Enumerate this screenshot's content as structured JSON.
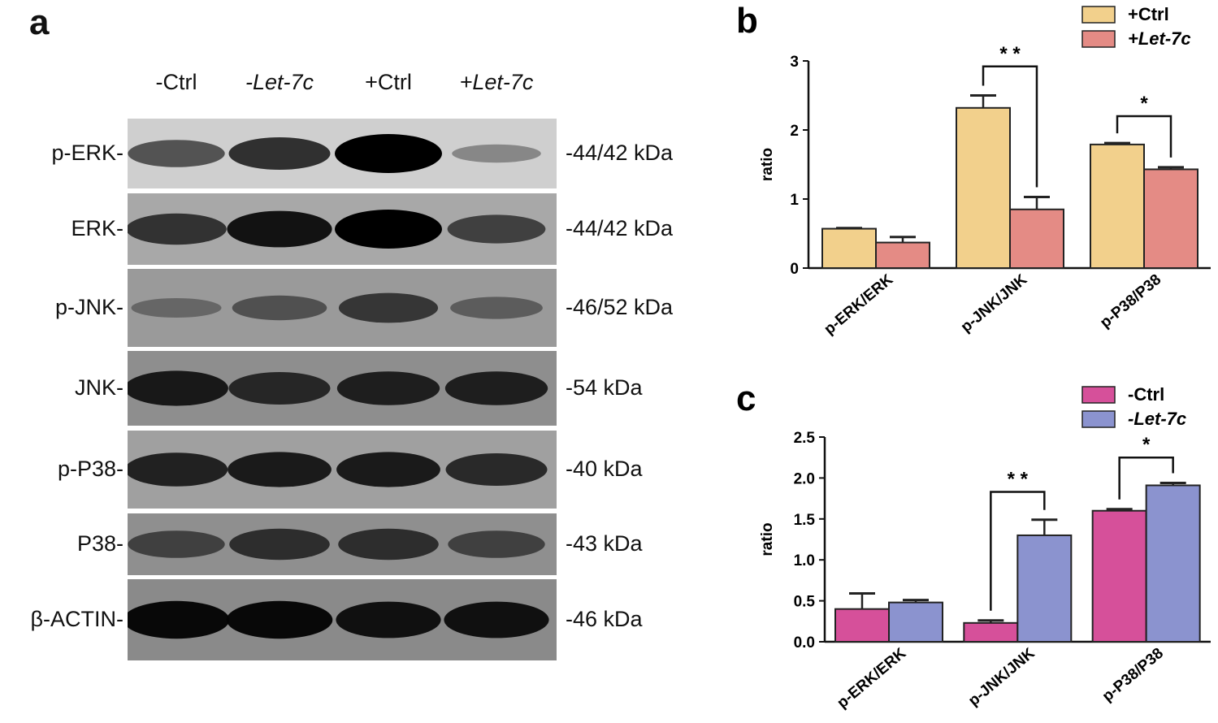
{
  "panel_a": {
    "letter": "a",
    "lanes": [
      {
        "text": "-Ctrl",
        "italic": false
      },
      {
        "text": "-Let-7c",
        "italic": true
      },
      {
        "text": "+Ctrl",
        "italic": false
      },
      {
        "text": "+Let-7c",
        "italic": true
      }
    ],
    "rows": [
      {
        "protein": "p-ERK-",
        "size": "-44/42 kDa",
        "band_intensity": [
          0.55,
          0.75,
          1.0,
          0.2
        ],
        "background": "#cfcfcf"
      },
      {
        "protein": "ERK-",
        "size": "-44/42 kDa",
        "band_intensity": [
          0.7,
          0.9,
          1.0,
          0.6
        ],
        "background": "#a8a8a8"
      },
      {
        "protein": "p-JNK-",
        "size": "-46/52 kDa",
        "band_intensity": [
          0.25,
          0.45,
          0.65,
          0.35
        ],
        "background": "#9a9a9a"
      },
      {
        "protein": "JNK-",
        "size": "-54 kDa",
        "band_intensity": [
          0.85,
          0.75,
          0.8,
          0.8
        ],
        "background": "#8e8e8e"
      },
      {
        "protein": "p-P38-",
        "size": "-40 kDa",
        "band_intensity": [
          0.8,
          0.85,
          0.85,
          0.75
        ],
        "background": "#a0a0a0"
      },
      {
        "protein": "P38-",
        "size": "-43 kDa",
        "band_intensity": [
          0.55,
          0.7,
          0.7,
          0.55
        ],
        "background": "#8f8f8f"
      },
      {
        "protein": "β-ACTIN-",
        "size": "-46 kDa",
        "band_intensity": [
          0.95,
          0.95,
          0.9,
          0.9
        ],
        "background": "#8a8a8a"
      }
    ]
  },
  "chart_data": [
    {
      "panel": "b",
      "type": "bar",
      "ylabel": "ratio",
      "ylim": [
        0,
        3
      ],
      "yticks": [
        "0",
        "1",
        "2",
        "3"
      ],
      "categories": [
        "p-ERK/ERK",
        "p-JNK/JNK",
        "p-P38/P38"
      ],
      "series": [
        {
          "name": "+Ctrl",
          "italic": false,
          "color": "#f2d08c",
          "values": [
            0.57,
            2.32,
            1.79
          ],
          "errors": [
            0.01,
            0.18,
            0.02
          ]
        },
        {
          "name": "+Let-7c",
          "italic": true,
          "color": "#e48b85",
          "values": [
            0.37,
            0.85,
            1.43
          ],
          "errors": [
            0.08,
            0.18,
            0.03
          ]
        }
      ],
      "significance": [
        {
          "category_index": 1,
          "label": "* *",
          "bracket_top": 2.92
        },
        {
          "category_index": 2,
          "label": "*",
          "bracket_top": 2.2
        }
      ],
      "legend": "top-right",
      "grid": false
    },
    {
      "panel": "c",
      "type": "bar",
      "ylabel": "ratio",
      "ylim": [
        0,
        2.5
      ],
      "yticks": [
        "0.0",
        "0.5",
        "1.0",
        "1.5",
        "2.0",
        "2.5"
      ],
      "categories": [
        "p-ERK/ERK",
        "p-JNK/JNK",
        "p-P38/P38"
      ],
      "series": [
        {
          "name": "-Ctrl",
          "italic": false,
          "color": "#d6509a",
          "values": [
            0.4,
            0.23,
            1.6
          ],
          "errors": [
            0.19,
            0.03,
            0.02
          ]
        },
        {
          "name": "-Let-7c",
          "italic": true,
          "color": "#8b93cf",
          "values": [
            0.48,
            1.3,
            1.91
          ],
          "errors": [
            0.03,
            0.19,
            0.03
          ]
        }
      ],
      "significance": [
        {
          "category_index": 1,
          "label": "* *",
          "bracket_top": 1.83
        },
        {
          "category_index": 2,
          "label": "*",
          "bracket_top": 2.25
        }
      ],
      "legend": "top-right",
      "grid": false
    }
  ]
}
